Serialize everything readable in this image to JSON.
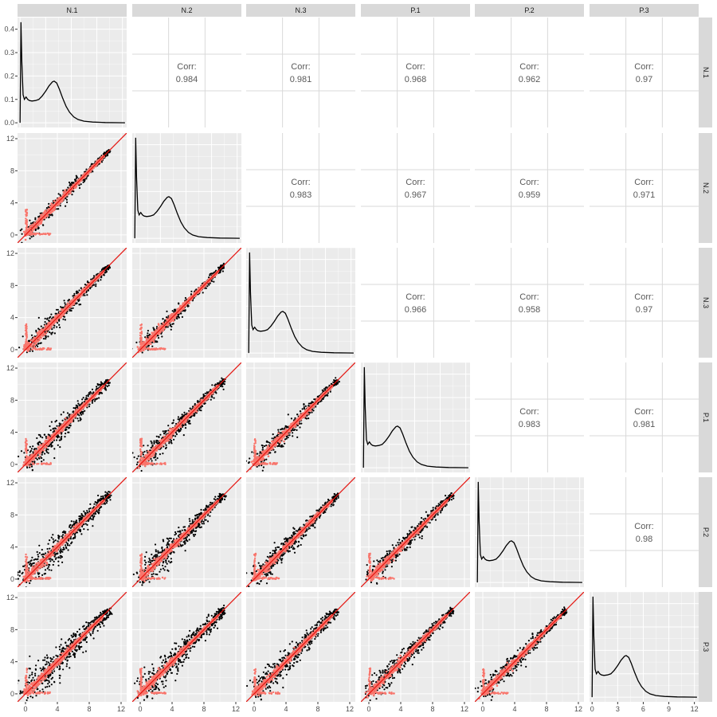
{
  "chart_data": {
    "type": "scatter",
    "variables": [
      "N.1",
      "N.2",
      "N.3",
      "P.1",
      "P.2",
      "P.3"
    ],
    "corr_label": "Corr:",
    "correlations": [
      {
        "row": "N.1",
        "col": "N.2",
        "value": "0.984"
      },
      {
        "row": "N.1",
        "col": "N.3",
        "value": "0.981"
      },
      {
        "row": "N.1",
        "col": "P.1",
        "value": "0.968"
      },
      {
        "row": "N.1",
        "col": "P.2",
        "value": "0.962"
      },
      {
        "row": "N.1",
        "col": "P.3",
        "value": "0.97"
      },
      {
        "row": "N.2",
        "col": "N.3",
        "value": "0.983"
      },
      {
        "row": "N.2",
        "col": "P.1",
        "value": "0.967"
      },
      {
        "row": "N.2",
        "col": "P.2",
        "value": "0.959"
      },
      {
        "row": "N.2",
        "col": "P.3",
        "value": "0.971"
      },
      {
        "row": "N.3",
        "col": "P.1",
        "value": "0.966"
      },
      {
        "row": "N.3",
        "col": "P.2",
        "value": "0.958"
      },
      {
        "row": "N.3",
        "col": "P.3",
        "value": "0.97"
      },
      {
        "row": "P.1",
        "col": "P.2",
        "value": "0.983"
      },
      {
        "row": "P.1",
        "col": "P.3",
        "value": "0.981"
      },
      {
        "row": "P.2",
        "col": "P.3",
        "value": "0.98"
      }
    ],
    "scatter_axis": {
      "lim": [
        -1,
        12.7
      ],
      "ticks": [
        0,
        4,
        8,
        12
      ],
      "tick_labels": [
        "0",
        "4",
        "8",
        "12"
      ]
    },
    "density_axis": {
      "xlim": [
        -0.3,
        12.5
      ],
      "ylim": [
        -0.02,
        0.45
      ],
      "y_ticks": [
        0.0,
        0.1,
        0.2,
        0.3,
        0.4
      ],
      "y_tick_labels": [
        "0.0",
        "0.1",
        "0.2",
        "0.3",
        "0.4"
      ],
      "x_ticks": [
        0,
        3,
        6,
        9,
        12
      ],
      "x_tick_labels": [
        "0",
        "3",
        "6",
        "9",
        "12"
      ]
    },
    "density_curve": {
      "x": [
        0.0,
        0.1,
        0.2,
        0.35,
        0.5,
        0.7,
        0.9,
        1.1,
        1.4,
        1.8,
        2.2,
        2.6,
        3.0,
        3.4,
        3.8,
        4.0,
        4.3,
        4.6,
        5.0,
        5.4,
        5.8,
        6.3,
        6.8,
        7.5,
        8.5,
        10.0,
        11.5,
        12.3
      ],
      "y": [
        0.0,
        0.43,
        0.26,
        0.12,
        0.1,
        0.11,
        0.1,
        0.095,
        0.093,
        0.095,
        0.1,
        0.115,
        0.135,
        0.158,
        0.175,
        0.178,
        0.17,
        0.145,
        0.105,
        0.07,
        0.045,
        0.025,
        0.014,
        0.007,
        0.003,
        0.001,
        0.0005,
        0.0
      ]
    },
    "reference_line": {
      "slope": 1,
      "intercept": 0,
      "color": "#e5140f"
    },
    "colors": {
      "panel_bg": "#ebebeb",
      "grid_major": "#ffffff",
      "empty_panel_grid": "#d9d9d9",
      "strip_bg": "#d9d9d9",
      "points_outer": "#000000",
      "points_inner": "#f8766d",
      "density_line": "#000000",
      "tick_text": "#4d4d4d"
    },
    "grid": true
  }
}
